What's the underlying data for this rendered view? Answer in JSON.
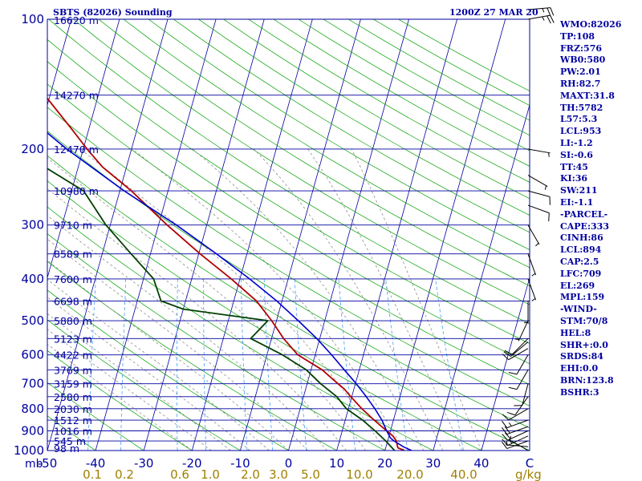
{
  "header": {
    "station": "SBTS (82026) Sounding",
    "time": "1200Z 27 MAR 20"
  },
  "indices": [
    "WMO:82026",
    "TP:108",
    "FRZ:576",
    "WB0:580",
    "PW:2.01",
    "RH:82.7",
    "MAXT:31.8",
    "TH:5782",
    "L57:5.3",
    "LCL:953",
    "LI:-1.2",
    "SI:-0.6",
    "TT:45",
    "KI:36",
    "SW:211",
    "EI:-1.1",
    "-PARCEL-",
    "CAPE:333",
    "CINH:86",
    "LCL:894",
    "CAP:2.5",
    "LFC:709",
    "EL:269",
    "MPL:159",
    "-WIND-",
    "STM:70/8",
    "HEL:8",
    "SHR+:0.0",
    "SRDS:84",
    "EHI:0.0",
    "BRN:123.8",
    "BSHR:3"
  ],
  "colors": {
    "frame": "#0000a0",
    "isobar": "#0000a0",
    "isotherm": "#0000a0",
    "dry_adiabat": "#00a000",
    "moist_adiabat": "#808080",
    "mixing_ratio": "#40a0ff",
    "temperature": "#b00000",
    "dewpoint": "#004000",
    "parcel": "#0000d0",
    "wind": "#000000",
    "axis_label": "#0000a0",
    "mixing_label": "#a08000"
  },
  "chart_data": {
    "type": "line",
    "title": "SBTS (82026) Sounding 1200Z 27 MAR 20",
    "xlabel": "C",
    "ylabel": "mb",
    "xlim": [
      -50,
      50
    ],
    "ylim": [
      1000,
      100
    ],
    "y_scale": "log",
    "x_ticks": [
      "-50",
      "-40",
      "-30",
      "-20",
      "-10",
      "0",
      "10",
      "20",
      "30",
      "40",
      "C"
    ],
    "mixing_ratio_label": "g/kg",
    "mixing_ratio_ticks": [
      "0.1",
      "0.2",
      "0.6",
      "1.0",
      "2.0",
      "3.0",
      "5.0",
      "10.0",
      "20.0",
      "40.0"
    ],
    "pressure_ticks": [
      100,
      200,
      300,
      400,
      500,
      600,
      700,
      800,
      900,
      1000
    ],
    "height_labels": [
      {
        "p": 100,
        "label": "16620 m"
      },
      {
        "p": 150,
        "label": "14270 m"
      },
      {
        "p": 200,
        "label": "12470 m"
      },
      {
        "p": 250,
        "label": "10980 m"
      },
      {
        "p": 300,
        "label": "9710 m"
      },
      {
        "p": 350,
        "label": "8589 m"
      },
      {
        "p": 400,
        "label": "7600 m"
      },
      {
        "p": 450,
        "label": "6698 m"
      },
      {
        "p": 500,
        "label": "5880 m"
      },
      {
        "p": 550,
        "label": "5123 m"
      },
      {
        "p": 600,
        "label": "4422 m"
      },
      {
        "p": 650,
        "label": "3769 m"
      },
      {
        "p": 700,
        "label": "3159 m"
      },
      {
        "p": 750,
        "label": "2580 m"
      },
      {
        "p": 800,
        "label": "2030 m"
      },
      {
        "p": 850,
        "label": "1512 m"
      },
      {
        "p": 900,
        "label": "1016 m"
      },
      {
        "p": 950,
        "label": "545 m"
      },
      {
        "p": 1000,
        "label": "98 m"
      }
    ],
    "series": [
      {
        "key": "temperature",
        "points": [
          [
            1000,
            24.0
          ],
          [
            985,
            22.5
          ],
          [
            950,
            21.8
          ],
          [
            925,
            20.8
          ],
          [
            900,
            19.2
          ],
          [
            850,
            16.0
          ],
          [
            800,
            12.8
          ],
          [
            750,
            9.8
          ],
          [
            720,
            8.0
          ],
          [
            700,
            6.4
          ],
          [
            650,
            2.3
          ],
          [
            600,
            -3.6
          ],
          [
            550,
            -7.5
          ],
          [
            500,
            -11.0
          ],
          [
            450,
            -15.3
          ],
          [
            400,
            -21.8
          ],
          [
            350,
            -29.7
          ],
          [
            300,
            -38.2
          ],
          [
            250,
            -47.6
          ],
          [
            220,
            -55.0
          ],
          [
            200,
            -59.2
          ],
          [
            180,
            -63.5
          ],
          [
            150,
            -71.1
          ],
          [
            130,
            -74.2
          ],
          [
            120,
            -75.6
          ],
          [
            110,
            -77.3
          ],
          [
            100,
            -78.0
          ]
        ]
      },
      {
        "key": "dewpoint",
        "points": [
          [
            1000,
            22.0
          ],
          [
            950,
            19.6
          ],
          [
            900,
            16.8
          ],
          [
            850,
            13.6
          ],
          [
            800,
            9.6
          ],
          [
            750,
            6.9
          ],
          [
            700,
            2.8
          ],
          [
            650,
            -1.0
          ],
          [
            600,
            -6.8
          ],
          [
            550,
            -14.3
          ],
          [
            500,
            -11.8
          ],
          [
            470,
            -30.0
          ],
          [
            450,
            -35.1
          ],
          [
            400,
            -37.9
          ],
          [
            350,
            -44.0
          ],
          [
            300,
            -50.9
          ],
          [
            250,
            -57.5
          ],
          [
            220,
            -67.0
          ],
          [
            200,
            -81.0
          ],
          [
            185,
            -72.0
          ],
          [
            175,
            -73.4
          ],
          [
            165,
            -76.1
          ],
          [
            150,
            -79.3
          ],
          [
            130,
            -85.7
          ],
          [
            120,
            -87.5
          ],
          [
            110,
            -90.3
          ],
          [
            100,
            -92.0
          ]
        ]
      },
      {
        "key": "parcel",
        "points": [
          [
            1000,
            25.5
          ],
          [
            980,
            23.6
          ],
          [
            950,
            21.3
          ],
          [
            935,
            20.4
          ],
          [
            900,
            19.2
          ],
          [
            850,
            17.6
          ],
          [
            800,
            15.5
          ],
          [
            750,
            13.0
          ],
          [
            700,
            10.2
          ],
          [
            650,
            6.9
          ],
          [
            600,
            3.4
          ],
          [
            550,
            -0.6
          ],
          [
            500,
            -5.5
          ],
          [
            450,
            -11.1
          ],
          [
            400,
            -18.0
          ],
          [
            350,
            -26.3
          ],
          [
            300,
            -36.3
          ],
          [
            250,
            -49.1
          ],
          [
            200,
            -63.4
          ],
          [
            150,
            -80.0
          ],
          [
            120,
            -92.0
          ]
        ]
      }
    ],
    "wind_barbs": [
      {
        "p": 1000,
        "dir": 300,
        "spd": 5
      },
      {
        "p": 980,
        "dir": 275,
        "spd": 5
      },
      {
        "p": 950,
        "dir": 250,
        "spd": 10
      },
      {
        "p": 925,
        "dir": 245,
        "spd": 15
      },
      {
        "p": 900,
        "dir": 245,
        "spd": 20
      },
      {
        "p": 880,
        "dir": 250,
        "spd": 20
      },
      {
        "p": 850,
        "dir": 250,
        "spd": 15
      },
      {
        "p": 800,
        "dir": 240,
        "spd": 10
      },
      {
        "p": 750,
        "dir": 215,
        "spd": 10
      },
      {
        "p": 700,
        "dir": 195,
        "spd": 10
      },
      {
        "p": 650,
        "dir": 210,
        "spd": 10
      },
      {
        "p": 600,
        "dir": 210,
        "spd": 10
      },
      {
        "p": 580,
        "dir": 240,
        "spd": 10
      },
      {
        "p": 560,
        "dir": 230,
        "spd": 10
      },
      {
        "p": 550,
        "dir": 225,
        "spd": 10
      },
      {
        "p": 500,
        "dir": 205,
        "spd": 5
      },
      {
        "p": 450,
        "dir": 180,
        "spd": 5
      },
      {
        "p": 400,
        "dir": 160,
        "spd": 5
      },
      {
        "p": 350,
        "dir": 160,
        "spd": 5
      },
      {
        "p": 300,
        "dir": 150,
        "spd": 5
      },
      {
        "p": 270,
        "dir": 110,
        "spd": 10
      },
      {
        "p": 250,
        "dir": 105,
        "spd": 10
      },
      {
        "p": 230,
        "dir": 120,
        "spd": 5
      },
      {
        "p": 200,
        "dir": 100,
        "spd": 5
      },
      {
        "p": 100,
        "dir": 80,
        "spd": 25
      },
      {
        "p": 95,
        "dir": 85,
        "spd": 25
      }
    ],
    "grid": true,
    "legend": "right"
  }
}
